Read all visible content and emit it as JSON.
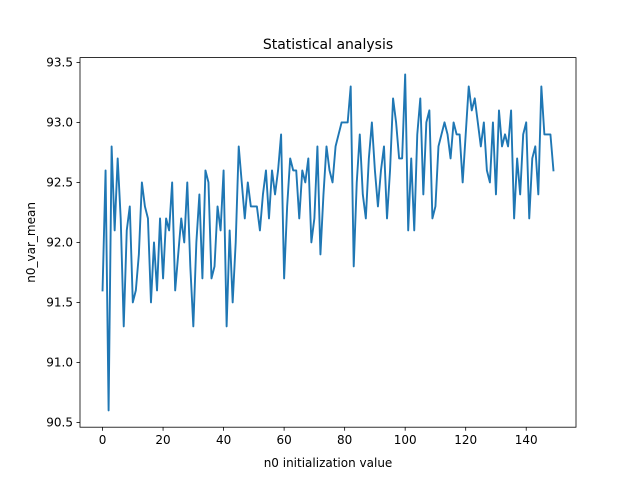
{
  "chart_data": {
    "type": "line",
    "title": "Statistical analysis",
    "xlabel": "n0 initialization value",
    "ylabel": "n0_var_mean",
    "xlim": [
      -7.45,
      156.45
    ],
    "ylim": [
      90.46,
      93.54
    ],
    "xticks": [
      0,
      20,
      40,
      60,
      80,
      100,
      120,
      140
    ],
    "xtick_labels": [
      "0",
      "20",
      "40",
      "60",
      "80",
      "100",
      "120",
      "140"
    ],
    "yticks": [
      90.5,
      91.0,
      91.5,
      92.0,
      92.5,
      93.0,
      93.5
    ],
    "ytick_labels": [
      "90.5",
      "91.0",
      "91.5",
      "92.0",
      "92.5",
      "93.0",
      "93.5"
    ],
    "grid": false,
    "legend": "none",
    "series": [
      {
        "color": "#1f77b4",
        "x": [
          0,
          1,
          2,
          3,
          4,
          5,
          6,
          7,
          8,
          9,
          10,
          11,
          12,
          13,
          14,
          15,
          16,
          17,
          18,
          19,
          20,
          21,
          22,
          23,
          24,
          25,
          26,
          27,
          28,
          29,
          30,
          31,
          32,
          33,
          34,
          35,
          36,
          37,
          38,
          39,
          40,
          41,
          42,
          43,
          44,
          45,
          46,
          47,
          48,
          49,
          50,
          51,
          52,
          53,
          54,
          55,
          56,
          57,
          58,
          59,
          60,
          61,
          62,
          63,
          64,
          65,
          66,
          67,
          68,
          69,
          70,
          71,
          72,
          73,
          74,
          75,
          76,
          77,
          78,
          79,
          80,
          81,
          82,
          83,
          84,
          85,
          86,
          87,
          88,
          89,
          90,
          91,
          92,
          93,
          94,
          95,
          96,
          97,
          98,
          99,
          100,
          101,
          102,
          103,
          104,
          105,
          106,
          107,
          108,
          109,
          110,
          111,
          112,
          113,
          114,
          115,
          116,
          117,
          118,
          119,
          120,
          121,
          122,
          123,
          124,
          125,
          126,
          127,
          128,
          129,
          130,
          131,
          132,
          133,
          134,
          135,
          136,
          137,
          138,
          139,
          140,
          141,
          142,
          143,
          144,
          145,
          146,
          147,
          148,
          149
        ],
        "values": [
          91.6,
          92.6,
          90.6,
          92.8,
          92.1,
          92.7,
          92.2,
          91.3,
          92.1,
          92.3,
          91.5,
          91.6,
          91.9,
          92.5,
          92.3,
          92.2,
          91.5,
          92.0,
          91.6,
          92.2,
          91.7,
          92.2,
          92.1,
          92.5,
          91.6,
          91.9,
          92.2,
          92.0,
          92.5,
          91.8,
          91.3,
          92.0,
          92.4,
          91.7,
          92.6,
          92.5,
          91.7,
          91.8,
          92.3,
          92.1,
          92.6,
          91.3,
          92.1,
          91.5,
          92.0,
          92.8,
          92.5,
          92.2,
          92.5,
          92.3,
          92.3,
          92.3,
          92.1,
          92.4,
          92.6,
          92.2,
          92.6,
          92.4,
          92.6,
          92.9,
          91.7,
          92.3,
          92.7,
          92.6,
          92.6,
          92.2,
          92.6,
          92.5,
          92.7,
          92.0,
          92.2,
          92.8,
          91.9,
          92.4,
          92.8,
          92.6,
          92.5,
          92.8,
          92.9,
          93.0,
          93.0,
          93.0,
          93.3,
          91.8,
          92.5,
          92.9,
          92.4,
          92.2,
          92.7,
          93.0,
          92.6,
          92.3,
          92.6,
          92.8,
          92.2,
          92.6,
          93.2,
          93.0,
          92.7,
          92.7,
          93.4,
          92.1,
          92.7,
          92.1,
          92.9,
          93.2,
          92.4,
          93.0,
          93.1,
          92.2,
          92.3,
          92.8,
          92.9,
          93.0,
          92.9,
          92.7,
          93.0,
          92.9,
          92.9,
          92.5,
          92.9,
          93.3,
          93.1,
          93.2,
          93.0,
          92.8,
          93.0,
          92.6,
          92.5,
          93.0,
          92.4,
          93.1,
          92.8,
          92.9,
          92.8,
          93.1,
          92.2,
          92.7,
          92.4,
          92.9,
          93.0,
          92.2,
          92.7,
          92.8,
          92.4,
          93.3,
          92.9,
          92.9,
          92.9,
          92.6
        ]
      }
    ]
  }
}
